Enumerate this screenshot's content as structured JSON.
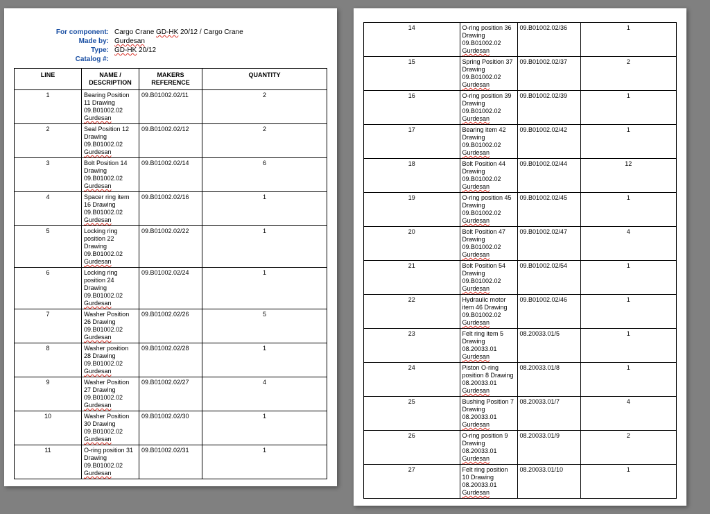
{
  "header": {
    "labels": {
      "component": "For component:",
      "made_by": "Made by:",
      "type": "Type:",
      "catalog": "Catalog #:"
    },
    "values": {
      "component_plain": "Cargo Crane ",
      "component_sq1": "GD-HK",
      "component_plain2": " 20/12 / Cargo Crane",
      "made_by": "Gurdesan",
      "type_sq": "GD-HK",
      "type_plain": " 20/12",
      "catalog": ""
    }
  },
  "columns": {
    "line": "LINE",
    "name": "NAME / DESCRIPTION",
    "ref": "MAKERS REFERENCE",
    "qty": "QUANTITY"
  },
  "rows_page1": [
    {
      "line": "1",
      "name": "Bearing Position 11 Drawing 09.B01002.02 ",
      "name_sq": "Gurdesan",
      "ref": "09.B01002.02/11",
      "qty": "2"
    },
    {
      "line": "2",
      "name": "Seal Position 12 Drawing 09.B01002.02 ",
      "name_sq": "Gurdesan",
      "ref": "09.B01002.02/12",
      "qty": "2"
    },
    {
      "line": "3",
      "name": "Bolt Position 14 Drawing 09.B01002.02 ",
      "name_sq": "Gurdesan",
      "ref": "09.B01002.02/14",
      "qty": "6"
    },
    {
      "line": "4",
      "name": "Spacer ring item 16 Drawing 09.B01002.02 ",
      "name_sq": "Gurdesan",
      "ref": "09.B01002.02/16",
      "qty": "1"
    },
    {
      "line": "5",
      "name": "Locking ring position 22 Drawing 09.B01002.02 ",
      "name_sq": "Gurdesan",
      "ref": "09.B01002.02/22",
      "qty": "1"
    },
    {
      "line": "6",
      "name": "Locking ring position 24 Drawing 09.B01002.02 ",
      "name_sq": "Gurdesan",
      "ref": "09.B01002.02/24",
      "qty": "1"
    },
    {
      "line": "7",
      "name": "Washer Position 26 Drawing 09.B01002.02 ",
      "name_sq": "Gurdesan",
      "ref": "09.B01002.02/26",
      "qty": "5"
    },
    {
      "line": "8",
      "name": "Washer position 28 Drawing 09.B01002.02 ",
      "name_sq": "Gurdesan",
      "ref": "09.B01002.02/28",
      "qty": "1"
    },
    {
      "line": "9",
      "name": "Washer Position 27 Drawing 09.B01002.02 ",
      "name_sq": "Gurdesan",
      "ref": "09.B01002.02/27",
      "qty": "4"
    },
    {
      "line": "10",
      "name": "Washer Position 30 Drawing 09.B01002.02 ",
      "name_sq": "Gurdesan",
      "ref": "09.B01002.02/30",
      "qty": "1"
    },
    {
      "line": "11",
      "name": "O-ring position 31 Drawing 09.B01002.02 ",
      "name_sq": "Gurdesan",
      "ref": "09.B01002.02/31",
      "qty": "1"
    }
  ],
  "rows_page2": [
    {
      "line": "14",
      "name": "O-ring position 36 Drawing 09.B01002.02 ",
      "name_sq": "Gurdesan",
      "ref": "09.B01002.02/36",
      "qty": "1"
    },
    {
      "line": "15",
      "name": "Spring Position 37 Drawing 09.B01002.02 ",
      "name_sq": "Gurdesan",
      "ref": "09.B01002.02/37",
      "qty": "2"
    },
    {
      "line": "16",
      "name": "O-ring position 39 Drawing 09.B01002.02 ",
      "name_sq": "Gurdesan",
      "ref": "09.B01002.02/39",
      "qty": "1"
    },
    {
      "line": "17",
      "name": "Bearing item 42 Drawing 09.B01002.02 ",
      "name_sq": "Gurdesan",
      "ref": "09.B01002.02/42",
      "qty": "1"
    },
    {
      "line": "18",
      "name": "Bolt Position 44 Drawing 09.B01002.02 ",
      "name_sq": "Gurdesan",
      "ref": "09.B01002.02/44",
      "qty": "12"
    },
    {
      "line": "19",
      "name": "O-ring position 45 Drawing 09.B01002.02 ",
      "name_sq": "Gurdesan",
      "ref": "09.B01002.02/45",
      "qty": "1"
    },
    {
      "line": "20",
      "name": "Bolt Position 47 Drawing 09.B01002.02 ",
      "name_sq": "Gurdesan",
      "ref": "09.B01002.02/47",
      "qty": "4"
    },
    {
      "line": "21",
      "name": "Bolt Position 54 Drawing 09.B01002.02 ",
      "name_sq": "Gurdesan",
      "ref": "09.B01002.02/54",
      "qty": "1"
    },
    {
      "line": "22",
      "name": "Hydraulic motor item 46 Drawing 09.B01002.02 ",
      "name_sq": "Gurdesan",
      "ref": "09.B01002.02/46",
      "qty": "1"
    },
    {
      "line": "23",
      "name": "Felt ring item 5 Drawing 08.20033.01 ",
      "name_sq": "Gurdesan",
      "ref": "08.20033.01/5",
      "qty": "1"
    },
    {
      "line": "24",
      "name": "Piston O-ring position 8 Drawing 08.20033.01 ",
      "name_sq": "Gurdesan",
      "ref": "08.20033.01/8",
      "qty": "1"
    },
    {
      "line": "25",
      "name": "Bushing Position 7 Drawing 08.20033.01 ",
      "name_sq": "Gurdesan",
      "ref": "08.20033.01/7",
      "qty": "4"
    },
    {
      "line": "26",
      "name": "O-ring position 9 Drawing 08.20033.01 ",
      "name_sq": "Gurdesan",
      "ref": "08.20033.01/9",
      "qty": "2"
    },
    {
      "line": "27",
      "name": "Felt ring position 10 Drawing 08.20033.01 ",
      "name_sq": "Gurdesan",
      "ref": "08.20033.01/10",
      "qty": "1"
    }
  ]
}
